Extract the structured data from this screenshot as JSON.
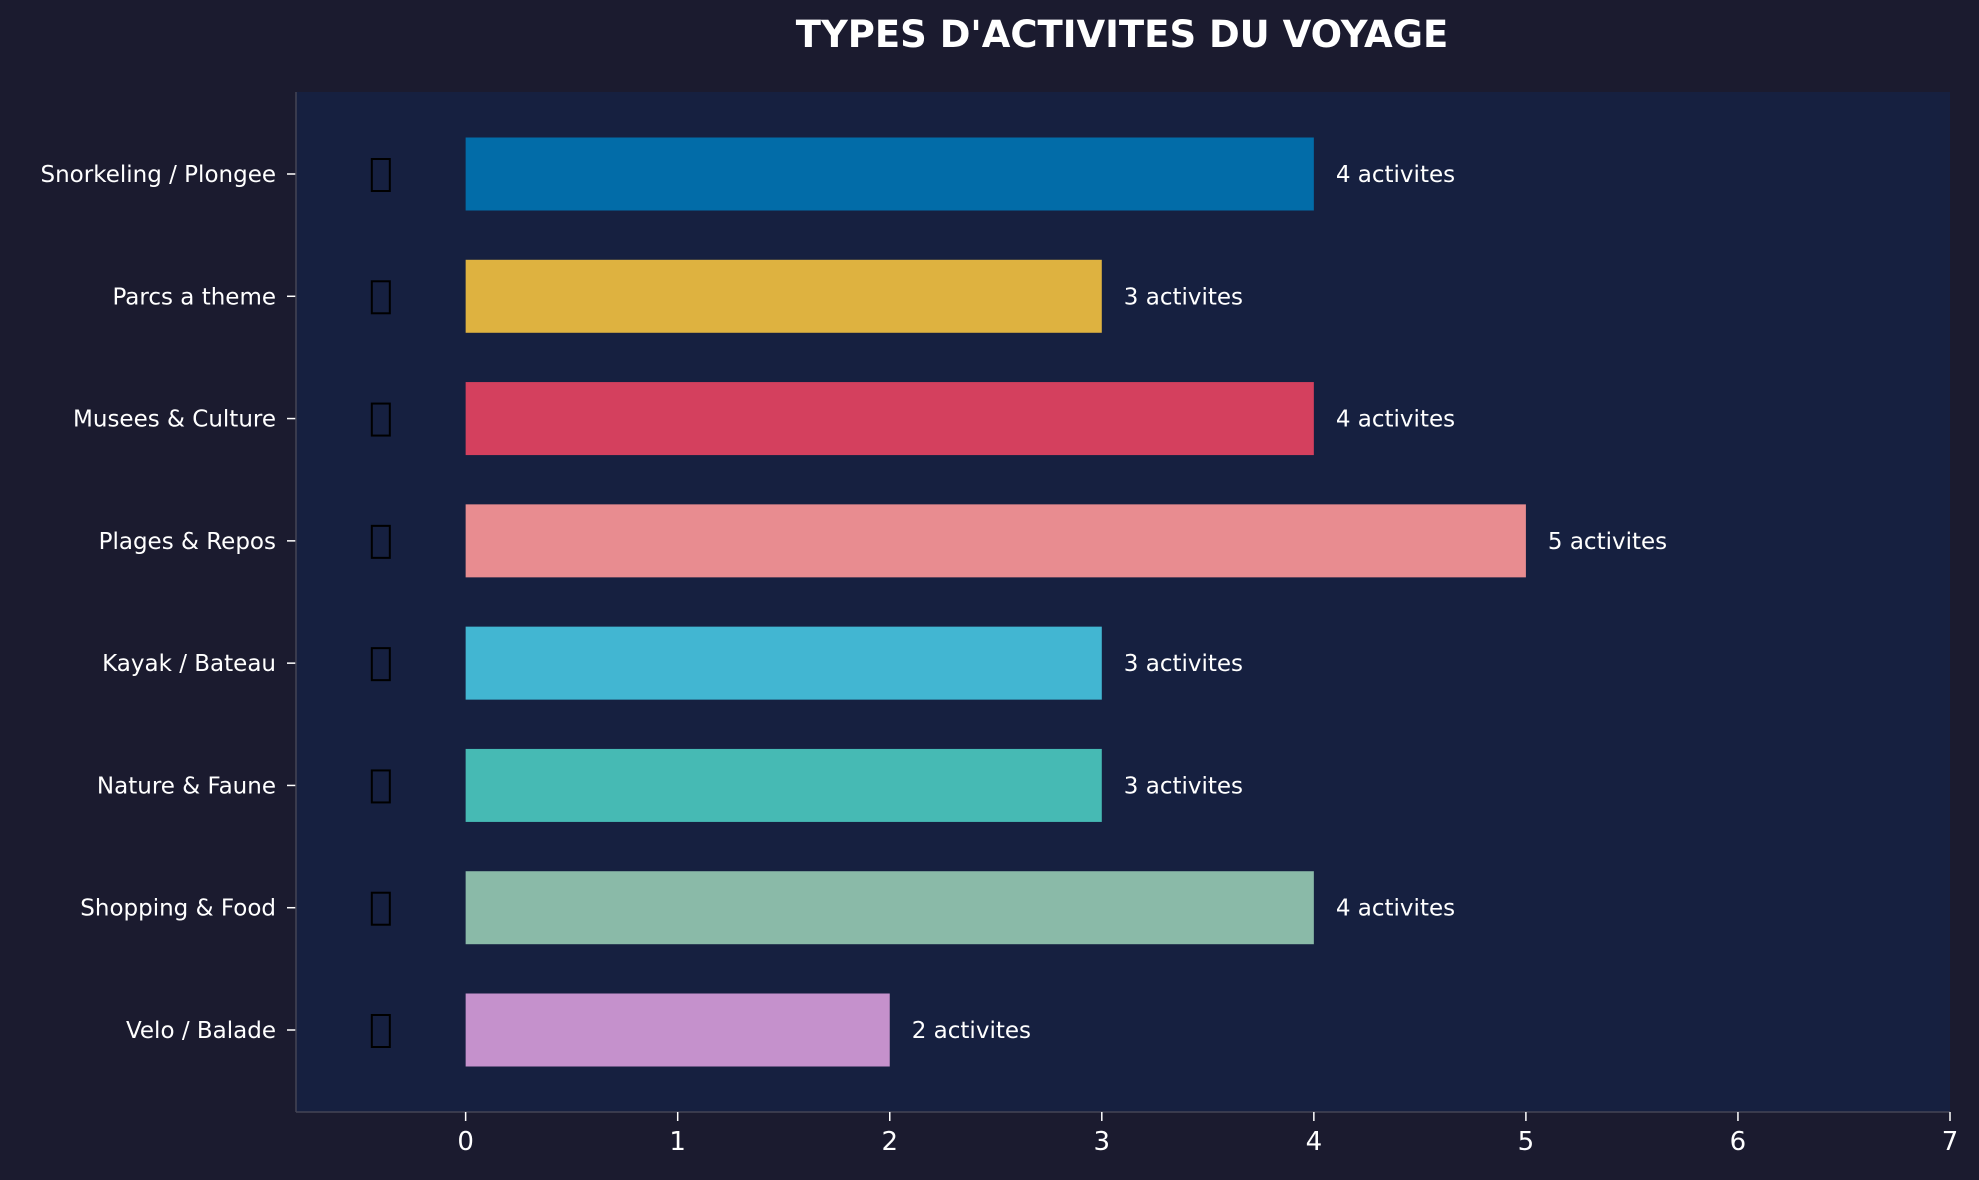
{
  "colors": {
    "background": "#1b1b2f",
    "plot_background": "#162040",
    "axis": "#444455",
    "text": "#ffffff"
  },
  "chart_data": {
    "type": "bar",
    "orientation": "horizontal",
    "title": "TYPES D'ACTIVITES DU VOYAGE",
    "xlabel": "",
    "ylabel": "",
    "xlim": [
      -0.8,
      7
    ],
    "xticks": [
      0,
      1,
      2,
      3,
      4,
      5,
      6,
      7
    ],
    "grid": false,
    "categories": [
      "Snorkeling / Plongee",
      "Parcs a theme",
      "Musees & Culture",
      "Plages & Repos",
      "Kayak / Bateau",
      "Nature & Faune",
      "Shopping & Food",
      "Velo / Balade"
    ],
    "values": [
      4,
      3,
      4,
      5,
      3,
      3,
      4,
      2
    ],
    "value_labels": [
      "4 activites",
      "3 activites",
      "4 activites",
      "5 activites",
      "3 activites",
      "3 activites",
      "4 activites",
      "2 activites"
    ],
    "bar_colors": [
      "#026ca8",
      "#deb240",
      "#d4405e",
      "#e88c90",
      "#42b6d2",
      "#46bab4",
      "#8abaa8",
      "#c591cc"
    ],
    "icons": [
      "diving-icon",
      "theme-park-icon",
      "museum-icon",
      "beach-icon",
      "kayak-icon",
      "nature-icon",
      "shopping-icon",
      "bike-icon"
    ]
  }
}
